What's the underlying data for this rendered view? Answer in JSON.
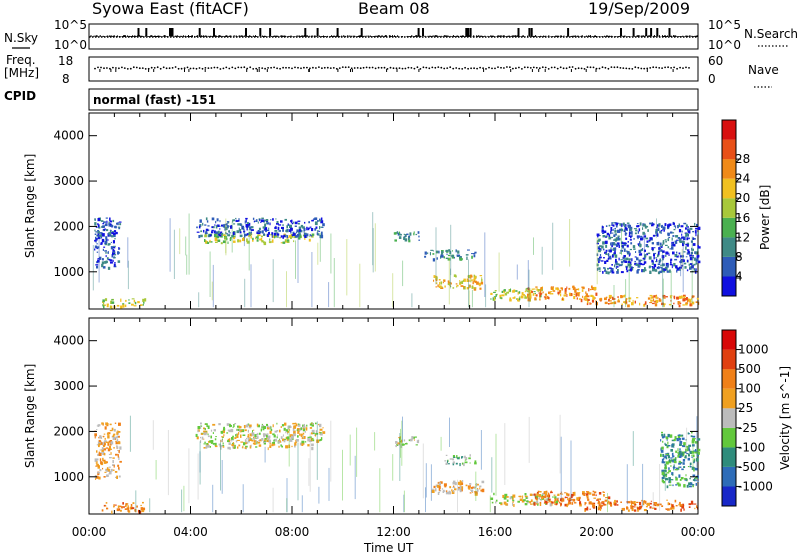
{
  "header": {
    "station": "Syowa East (fitACF)",
    "beam": "Beam 08",
    "date": "19/Sep/2009"
  },
  "top_panels": {
    "nsky_label": "N.Sky",
    "nsky_ticks": [
      "10^5",
      "10^0"
    ],
    "nsearch_label": "N.Search",
    "nsearch_ticks": [
      "10^5",
      "10^0"
    ],
    "freq_label_line1": "Freq.",
    "freq_label_line2": "[MHz]",
    "freq_ticks": [
      "18",
      "8"
    ],
    "nave_label": "Nave",
    "nave_ticks": [
      "60",
      "0"
    ],
    "cpid_label": "CPID",
    "cpid_value": "normal (fast) -151"
  },
  "chart_data": [
    {
      "type": "heatmap",
      "panel": "power",
      "ylabel": "Slant Range [km]",
      "xlabel": "Time UT",
      "x_ticks": [
        "00:00",
        "04:00",
        "08:00",
        "12:00",
        "16:00",
        "20:00",
        "00:00"
      ],
      "x_range_hours": [
        0,
        24
      ],
      "y_ticks": [
        1000,
        2000,
        3000,
        4000
      ],
      "y_range_km": [
        180,
        4500
      ],
      "colorbar": {
        "label": "Power [dB]",
        "ticks": [
          "4",
          "8",
          "12",
          "16",
          "20",
          "24",
          "28"
        ],
        "colors": [
          "#1010e0",
          "#2e5cb8",
          "#3f8a86",
          "#4ab050",
          "#a8c83a",
          "#f0c020",
          "#f08a18",
          "#e85018",
          "#d81010"
        ]
      },
      "echo_regions": [
        {
          "t0": 0.2,
          "t1": 1.2,
          "r0": 1100,
          "r1": 2200,
          "level": 1
        },
        {
          "t0": 0.5,
          "t1": 2.2,
          "r0": 250,
          "r1": 420,
          "level": 4
        },
        {
          "t0": 4.5,
          "t1": 8.8,
          "r0": 1650,
          "r1": 1850,
          "level": 4
        },
        {
          "t0": 4.2,
          "t1": 9.2,
          "r0": 1800,
          "r1": 2200,
          "level": 1
        },
        {
          "t0": 12.0,
          "t1": 13.0,
          "r0": 1700,
          "r1": 1900,
          "level": 2
        },
        {
          "t0": 13.5,
          "t1": 15.5,
          "r0": 650,
          "r1": 950,
          "level": 5
        },
        {
          "t0": 13.2,
          "t1": 15.2,
          "r0": 1300,
          "r1": 1500,
          "level": 2
        },
        {
          "t0": 15.8,
          "t1": 17.8,
          "r0": 400,
          "r1": 650,
          "level": 4
        },
        {
          "t0": 17.2,
          "t1": 20.0,
          "r0": 400,
          "r1": 700,
          "level": 6
        },
        {
          "t0": 19.5,
          "t1": 24.0,
          "r0": 280,
          "r1": 500,
          "level": 6
        },
        {
          "t0": 20.0,
          "t1": 24.0,
          "r0": 1000,
          "r1": 2100,
          "level": 1
        }
      ]
    },
    {
      "type": "heatmap",
      "panel": "velocity",
      "ylabel": "Slant Range [km]",
      "xlabel": "Time UT",
      "x_ticks": [
        "00:00",
        "04:00",
        "08:00",
        "12:00",
        "16:00",
        "20:00",
        "00:00"
      ],
      "x_range_hours": [
        0,
        24
      ],
      "y_ticks": [
        1000,
        2000,
        3000,
        4000
      ],
      "y_range_km": [
        180,
        4500
      ],
      "colorbar": {
        "label": "Velocity [m s^-1]",
        "ticks": [
          "1000",
          "500",
          "100",
          "25",
          "-25",
          "-100",
          "-500",
          "-1000"
        ],
        "colors": [
          "#1828c8",
          "#2e6cb8",
          "#2f8c7c",
          "#62c83c",
          "#bcbcbc",
          "#f0a020",
          "#f08018",
          "#e04010",
          "#d80808"
        ]
      },
      "echo_regions": [
        {
          "t0": 0.2,
          "t1": 1.2,
          "r0": 1000,
          "r1": 2200,
          "level": 5
        },
        {
          "t0": 0.5,
          "t1": 2.2,
          "r0": 250,
          "r1": 450,
          "level": 6
        },
        {
          "t0": 4.5,
          "t1": 8.8,
          "r0": 1650,
          "r1": 1850,
          "level": 4
        },
        {
          "t0": 4.2,
          "t1": 9.2,
          "r0": 1800,
          "r1": 2200,
          "level": 4
        },
        {
          "t0": 12.0,
          "t1": 13.0,
          "r0": 1700,
          "r1": 1900,
          "level": 4
        },
        {
          "t0": 13.5,
          "t1": 15.5,
          "r0": 650,
          "r1": 950,
          "level": 5
        },
        {
          "t0": 14.0,
          "t1": 15.2,
          "r0": 1300,
          "r1": 1500,
          "level": 3
        },
        {
          "t0": 15.8,
          "t1": 18.5,
          "r0": 400,
          "r1": 650,
          "level": 4
        },
        {
          "t0": 17.5,
          "t1": 20.5,
          "r0": 400,
          "r1": 700,
          "level": 6
        },
        {
          "t0": 19.5,
          "t1": 24.0,
          "r0": 280,
          "r1": 500,
          "level": 6
        },
        {
          "t0": 22.5,
          "t1": 24.0,
          "r0": 800,
          "r1": 2000,
          "level": 2
        }
      ]
    }
  ]
}
